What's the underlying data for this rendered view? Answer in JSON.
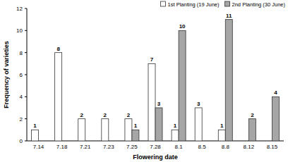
{
  "chart_data": {
    "type": "bar",
    "x_label": "Flowering date",
    "y_label": "Frequency of varieties",
    "categories": [
      "7.14",
      "7.18",
      "7.21",
      "7.23",
      "7.25",
      "7.28",
      "8.1",
      "8.5",
      "8.8",
      "8.12",
      "8.15"
    ],
    "series": [
      {
        "name": "1st Planting (19 June)",
        "color": "#ffffff",
        "values": [
          1,
          8,
          2,
          2,
          2,
          7,
          1,
          3,
          1,
          null,
          null
        ]
      },
      {
        "name": "2nd Planting (30 June)",
        "color": "#a6a6a6",
        "values": [
          null,
          null,
          null,
          null,
          1,
          3,
          10,
          null,
          11,
          2,
          4
        ]
      }
    ],
    "ylim": [
      0,
      12
    ],
    "yticks": [
      0,
      2,
      4,
      6,
      8,
      10,
      12
    ],
    "grid": false,
    "legend": "top-right",
    "data_labels": true
  }
}
